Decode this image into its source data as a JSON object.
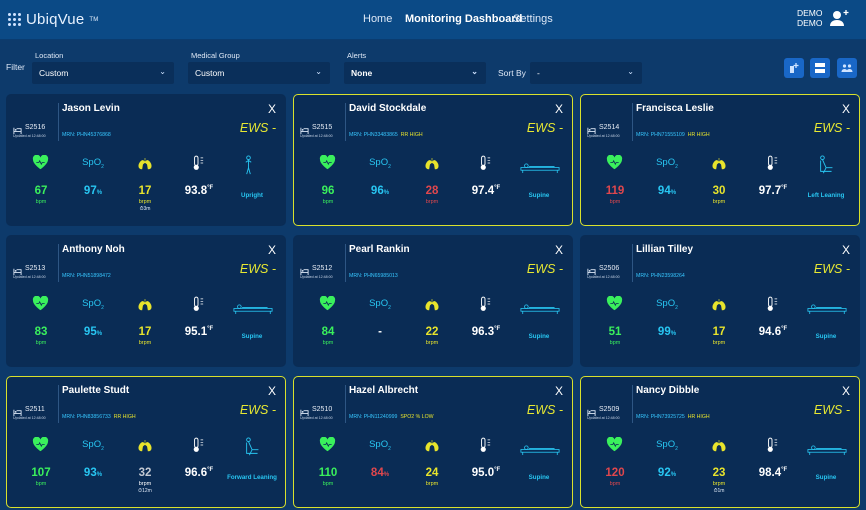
{
  "app": {
    "logo": "UbiqVue",
    "tm": "TM"
  },
  "nav": {
    "home": "Home",
    "dashboard": "Monitoring Dashboard",
    "settings": "Settings"
  },
  "user": {
    "line1": "DEMO",
    "line2": "DEMO"
  },
  "filters": {
    "filter_label": "Filter",
    "location": {
      "label": "Location",
      "value": "Custom"
    },
    "group": {
      "label": "Medical Group",
      "value": "Custom"
    },
    "alerts": {
      "label": "Alerts",
      "value": "None"
    },
    "sort": {
      "label": "Sort By",
      "value": "-"
    },
    "chevron": "⌄"
  },
  "colors": {
    "accent": "#e7e832",
    "header": "#0b4a86",
    "card": "#0a2c55",
    "good": "#3af05c",
    "bad": "#e0474d",
    "info": "#28c6f2"
  },
  "common": {
    "ews_label": "EWS -",
    "close": "X",
    "updated": "Updated at 12:48:00",
    "spo2": "SpO",
    "spo2_sub": "2",
    "bpm": "bpm",
    "brpm": "brpm",
    "pct": "%",
    "degF": "°F"
  },
  "patients": [
    {
      "name": "Jason Levin",
      "bed": "S2516",
      "mrn": "MRN: PHN45376868",
      "mrn_alert": "",
      "alert": false,
      "hr": "67",
      "hr_color": "g",
      "spo2": "97",
      "spo2_color": "c",
      "rr": "17",
      "rr_color": "y",
      "timer": "⏱3m",
      "temp": "93.8",
      "posture": "Upright",
      "pos_icon": "upright"
    },
    {
      "name": "David Stockdale",
      "bed": "S2515",
      "mrn": "MRN: PHN33483865",
      "mrn_alert": "RR HIGH",
      "alert": true,
      "hr": "96",
      "hr_color": "g",
      "spo2": "96",
      "spo2_color": "c",
      "rr": "28",
      "rr_color": "r",
      "timer": "",
      "temp": "97.4",
      "posture": "Supine",
      "pos_icon": "supine"
    },
    {
      "name": "Francisca Leslie",
      "bed": "S2514",
      "mrn": "MRN: PHN71555109",
      "mrn_alert": "HR HIGH",
      "alert": true,
      "hr": "119",
      "hr_color": "r",
      "spo2": "94",
      "spo2_color": "c",
      "rr": "30",
      "rr_color": "y",
      "timer": "",
      "temp": "97.7",
      "posture": "Left Leaning",
      "pos_icon": "leaning"
    },
    {
      "name": "Anthony Noh",
      "bed": "S2513",
      "mrn": "MRN: PHN51898472",
      "mrn_alert": "",
      "alert": false,
      "hr": "83",
      "hr_color": "g",
      "spo2": "95",
      "spo2_color": "c",
      "rr": "17",
      "rr_color": "y",
      "timer": "",
      "temp": "95.1",
      "posture": "Supine",
      "pos_icon": "supine"
    },
    {
      "name": "Pearl Rankin",
      "bed": "S2512",
      "mrn": "MRN: PHN65985013",
      "mrn_alert": "",
      "alert": false,
      "hr": "84",
      "hr_color": "g",
      "spo2": "-",
      "spo2_color": "w",
      "rr": "22",
      "rr_color": "y",
      "timer": "",
      "temp": "96.3",
      "posture": "Supine",
      "pos_icon": "supine"
    },
    {
      "name": "Lillian Tilley",
      "bed": "S2506",
      "mrn": "MRN: PHN23598264",
      "mrn_alert": "",
      "alert": false,
      "hr": "51",
      "hr_color": "g",
      "spo2": "99",
      "spo2_color": "c",
      "rr": "17",
      "rr_color": "y",
      "timer": "",
      "temp": "94.6",
      "posture": "Supine",
      "pos_icon": "supine"
    },
    {
      "name": "Paulette Studt",
      "bed": "S2511",
      "mrn": "MRN: PHN83856733",
      "mrn_alert": "RR HIGH",
      "alert": true,
      "hr": "107",
      "hr_color": "g",
      "spo2": "93",
      "spo2_color": "c",
      "rr": "32",
      "rr_color": "gr",
      "timer": "⏱12m",
      "temp": "96.6",
      "posture": "Forward Leaning",
      "pos_icon": "leaning"
    },
    {
      "name": "Hazel Albrecht",
      "bed": "S2510",
      "mrn": "MRN: PHN11240999",
      "mrn_alert": "SPO2 % LOW",
      "alert": true,
      "hr": "110",
      "hr_color": "g",
      "spo2": "84",
      "spo2_color": "r",
      "rr": "24",
      "rr_color": "y",
      "timer": "",
      "temp": "95.0",
      "posture": "Supine",
      "pos_icon": "supine"
    },
    {
      "name": "Nancy Dibble",
      "bed": "S2509",
      "mrn": "MRN: PHN73925725",
      "mrn_alert": "HR HIGH",
      "alert": true,
      "hr": "120",
      "hr_color": "r",
      "spo2": "92",
      "spo2_color": "c",
      "rr": "23",
      "rr_color": "y",
      "timer": "⏱1m",
      "temp": "98.4",
      "posture": "Supine",
      "pos_icon": "supine"
    }
  ]
}
